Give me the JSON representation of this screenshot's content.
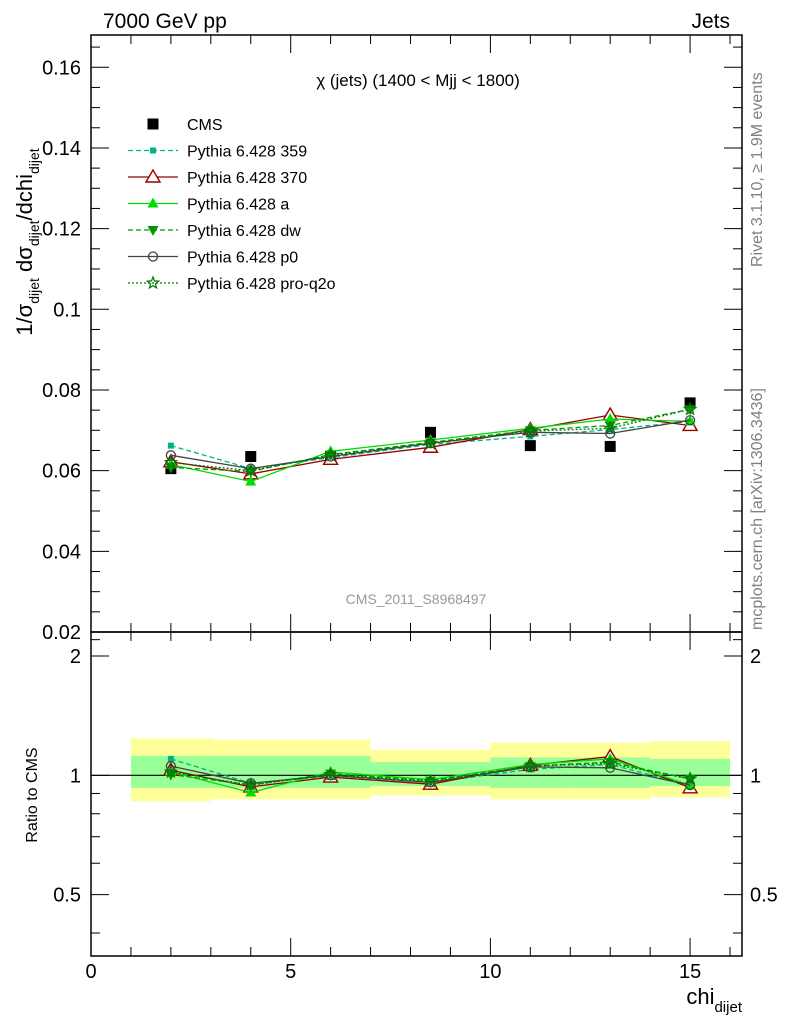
{
  "header": {
    "energy": "7000 GeV pp",
    "category": "Jets"
  },
  "side_labels": {
    "rivet": "Rivet 3.1.10, ≥ 1.9M events",
    "mcplots": "mcplots.cern.ch [arXiv:1306.3436]"
  },
  "watermark": "CMS_2011_S8968497",
  "colors": {
    "band_outer": "#ffff99",
    "band_inner": "#99ff99",
    "cms": "#000000",
    "p359": "#00b386",
    "p370": "#990000",
    "pa": "#00dd00",
    "pdw": "#009900",
    "pp0": "#444444",
    "pq2o": "#007700"
  },
  "chart_data": [
    {
      "type": "scatter",
      "panel": "main",
      "title": "χ (jets) (1400 < Mjj < 1800)",
      "ylabel": "1/σ_dijet dσ_dijet/dchi_dijet",
      "xlim": [
        0,
        16.3
      ],
      "ylim": [
        0.02,
        0.168
      ],
      "x_ticks": [
        0,
        5,
        10,
        15
      ],
      "y_ticks": [
        "0.02",
        "0.04",
        "0.06",
        "0.08",
        "0.1",
        "0.12",
        "0.14",
        "0.16"
      ],
      "legend_position": "top-left",
      "x": [
        2,
        4,
        6,
        8.5,
        11,
        13,
        15
      ],
      "series": [
        {
          "name": "CMS",
          "marker": "square-filled",
          "line": "none",
          "values": [
            0.0605,
            0.0635,
            0.0635,
            0.0695,
            0.0662,
            0.066,
            0.0768
          ]
        },
        {
          "name": "Pythia 6.428 359",
          "marker": "square-small",
          "line": "dashed",
          "values": [
            0.0662,
            0.0605,
            0.0632,
            0.0665,
            0.0685,
            0.0702,
            0.0722
          ]
        },
        {
          "name": "Pythia 6.428 370",
          "marker": "triangle-open",
          "line": "solid",
          "values": [
            0.0622,
            0.0592,
            0.0628,
            0.0658,
            0.0702,
            0.0738,
            0.0712
          ]
        },
        {
          "name": "Pythia 6.428 a",
          "marker": "triangle-filled",
          "line": "solid",
          "values": [
            0.0615,
            0.0573,
            0.0648,
            0.0676,
            0.0705,
            0.0728,
            0.0722
          ]
        },
        {
          "name": "Pythia 6.428 dw",
          "marker": "triangle-down-filled",
          "line": "dashed",
          "values": [
            0.0608,
            0.0598,
            0.064,
            0.067,
            0.07,
            0.0712,
            0.0752
          ]
        },
        {
          "name": "Pythia 6.428 p0",
          "marker": "circle-open",
          "line": "solid",
          "values": [
            0.0638,
            0.0605,
            0.0635,
            0.0668,
            0.0695,
            0.0692,
            0.0725
          ]
        },
        {
          "name": "Pythia 6.428 pro-q2o",
          "marker": "star-open",
          "line": "dotted",
          "values": [
            0.062,
            0.06,
            0.0638,
            0.0668,
            0.0698,
            0.0705,
            0.0752
          ]
        }
      ]
    },
    {
      "type": "scatter",
      "panel": "ratio",
      "ylabel": "Ratio to CMS",
      "xlabel": "chi_dijet",
      "xlim": [
        0,
        16.3
      ],
      "ylim": [
        0.35,
        2.3
      ],
      "x_ticks": [
        0,
        5,
        10,
        15
      ],
      "y_ticks": [
        "0.5",
        "1",
        "2"
      ],
      "reference_line": 1,
      "bands": [
        {
          "xmin": 1,
          "xmax": 3,
          "outer": [
            0.86,
            1.24
          ],
          "inner": [
            0.93,
            1.12
          ]
        },
        {
          "xmin": 3,
          "xmax": 5,
          "outer": [
            0.87,
            1.23
          ],
          "inner": [
            0.93,
            1.12
          ]
        },
        {
          "xmin": 5,
          "xmax": 7,
          "outer": [
            0.87,
            1.23
          ],
          "inner": [
            0.93,
            1.12
          ]
        },
        {
          "xmin": 7,
          "xmax": 10,
          "outer": [
            0.89,
            1.16
          ],
          "inner": [
            0.94,
            1.08
          ]
        },
        {
          "xmin": 10,
          "xmax": 12,
          "outer": [
            0.87,
            1.21
          ],
          "inner": [
            0.93,
            1.11
          ]
        },
        {
          "xmin": 12,
          "xmax": 14,
          "outer": [
            0.87,
            1.21
          ],
          "inner": [
            0.93,
            1.11
          ]
        },
        {
          "xmin": 14,
          "xmax": 16,
          "outer": [
            0.88,
            1.22
          ],
          "inner": [
            0.94,
            1.1
          ]
        }
      ],
      "x": [
        2,
        4,
        6,
        8.5,
        11,
        13,
        15
      ],
      "series": [
        {
          "name": "Pythia 6.428 359",
          "marker": "square-small",
          "line": "dashed",
          "values": [
            1.1,
            0.955,
            0.995,
            0.96,
            1.035,
            1.065,
            0.945
          ]
        },
        {
          "name": "Pythia 6.428 370",
          "marker": "triangle-open",
          "line": "solid",
          "values": [
            1.03,
            0.935,
            0.99,
            0.95,
            1.06,
            1.115,
            0.93
          ]
        },
        {
          "name": "Pythia 6.428 a",
          "marker": "triangle-filled",
          "line": "solid",
          "values": [
            1.02,
            0.905,
            1.02,
            0.975,
            1.065,
            1.1,
            0.945
          ]
        },
        {
          "name": "Pythia 6.428 dw",
          "marker": "triangle-down-filled",
          "line": "dashed",
          "values": [
            1.005,
            0.945,
            1.01,
            0.97,
            1.055,
            1.08,
            0.98
          ]
        },
        {
          "name": "Pythia 6.428 p0",
          "marker": "circle-open",
          "line": "solid",
          "values": [
            1.055,
            0.955,
            1.0,
            0.96,
            1.05,
            1.045,
            0.945
          ]
        },
        {
          "name": "Pythia 6.428 pro-q2o",
          "marker": "star-open",
          "line": "dotted",
          "values": [
            1.02,
            0.945,
            1.005,
            0.965,
            1.055,
            1.07,
            0.98
          ]
        }
      ]
    }
  ]
}
